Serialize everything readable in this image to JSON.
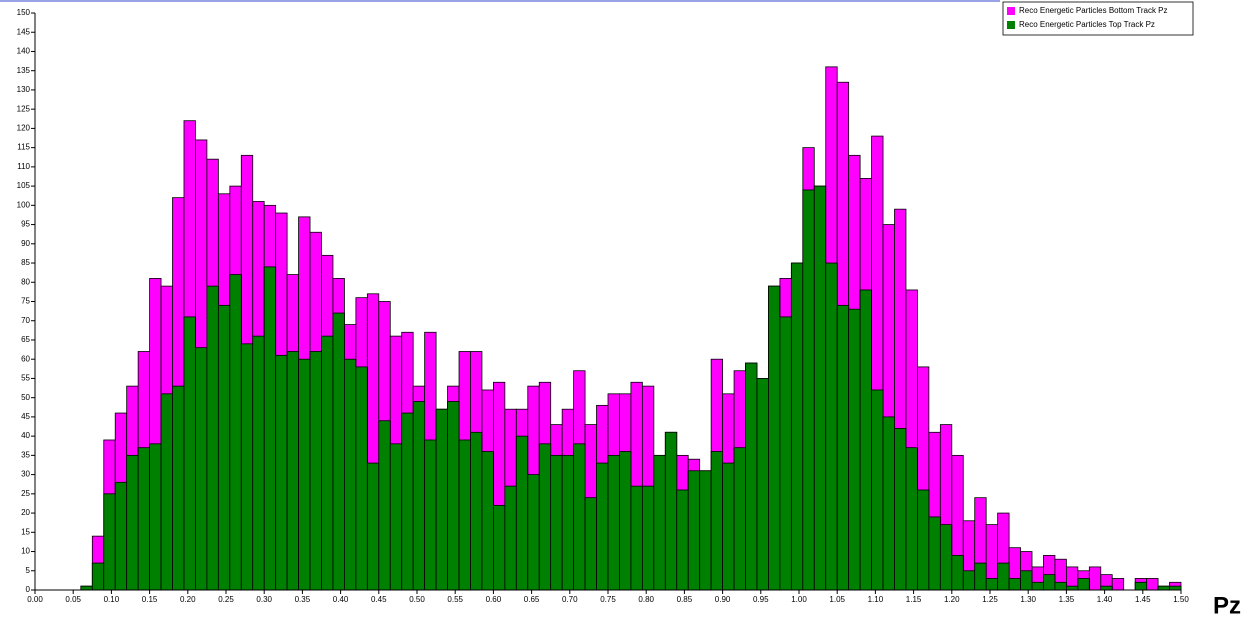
{
  "chart_data": {
    "type": "histogram",
    "overlay": true,
    "xlabel": "Pz",
    "bins": [
      0,
      0.015,
      0.03,
      0.045,
      0.06,
      0.075,
      0.09,
      0.105,
      0.12,
      0.135,
      0.15,
      0.165,
      0.18,
      0.195,
      0.21,
      0.225,
      0.24,
      0.255,
      0.27,
      0.285,
      0.3,
      0.315,
      0.33,
      0.345,
      0.36,
      0.375,
      0.39,
      0.405,
      0.42,
      0.435,
      0.45,
      0.465,
      0.48,
      0.495,
      0.51,
      0.525,
      0.54,
      0.555,
      0.57,
      0.585,
      0.6,
      0.615,
      0.63,
      0.645,
      0.66,
      0.675,
      0.69,
      0.705,
      0.72,
      0.735,
      0.75,
      0.765,
      0.78,
      0.795,
      0.81,
      0.825,
      0.84,
      0.855,
      0.87,
      0.885,
      0.9,
      0.915,
      0.93,
      0.945,
      0.96,
      0.975,
      0.99,
      1.005,
      1.02,
      1.035,
      1.05,
      1.065,
      1.08,
      1.095,
      1.11,
      1.125,
      1.14,
      1.155,
      1.17,
      1.185,
      1.2,
      1.215,
      1.23,
      1.245,
      1.26,
      1.275,
      1.29,
      1.305,
      1.32,
      1.335,
      1.35,
      1.365,
      1.38,
      1.395,
      1.41,
      1.425,
      1.44,
      1.455,
      1.47,
      1.485,
      1.5
    ],
    "series": [
      {
        "name": "Reco Energetic Particles Bottom Track Pz",
        "color": "#ff00ff",
        "values": [
          0,
          0,
          0,
          0,
          1,
          14,
          39,
          46,
          53,
          62,
          81,
          79,
          102,
          122,
          117,
          112,
          103,
          105,
          113,
          101,
          100,
          98,
          82,
          97,
          93,
          87,
          81,
          69,
          76,
          77,
          75,
          66,
          67,
          53,
          67,
          47,
          53,
          62,
          62,
          52,
          54,
          47,
          47,
          53,
          54,
          43,
          47,
          57,
          43,
          48,
          51,
          51,
          54,
          53,
          35,
          41,
          35,
          34,
          31,
          60,
          51,
          57,
          59,
          55,
          79,
          81,
          85,
          115,
          105,
          136,
          132,
          113,
          107,
          118,
          95,
          99,
          78,
          58,
          41,
          43,
          35,
          18,
          24,
          17,
          20,
          11,
          10,
          6,
          9,
          8,
          6,
          5,
          6,
          4,
          3,
          0,
          3,
          3,
          1,
          2
        ]
      },
      {
        "name": "Reco Energetic Particles Top Track Pz",
        "color": "#008000",
        "values": [
          0,
          0,
          0,
          0,
          1,
          7,
          25,
          28,
          35,
          37,
          38,
          51,
          53,
          71,
          63,
          79,
          74,
          82,
          64,
          66,
          84,
          61,
          62,
          60,
          62,
          66,
          72,
          60,
          58,
          33,
          44,
          38,
          46,
          49,
          39,
          47,
          49,
          39,
          41,
          36,
          22,
          27,
          40,
          30,
          38,
          35,
          35,
          38,
          24,
          33,
          35,
          36,
          27,
          27,
          35,
          41,
          26,
          31,
          31,
          36,
          33,
          37,
          59,
          55,
          79,
          71,
          85,
          104,
          105,
          85,
          74,
          73,
          78,
          52,
          45,
          42,
          37,
          26,
          19,
          17,
          9,
          5,
          7,
          3,
          7,
          3,
          5,
          2,
          4,
          2,
          1,
          3,
          0,
          1,
          0,
          0,
          2,
          0,
          1,
          1
        ]
      }
    ],
    "xlim": [
      0,
      1.5
    ],
    "xticks": [
      {
        "value": 0,
        "label": "0.00"
      },
      {
        "value": 0.05,
        "label": "0.05"
      },
      {
        "value": 0.1,
        "label": "0.10"
      },
      {
        "value": 0.15,
        "label": "0.15"
      },
      {
        "value": 0.2,
        "label": "0.20"
      },
      {
        "value": 0.25,
        "label": "0.25"
      },
      {
        "value": 0.3,
        "label": "0.30"
      },
      {
        "value": 0.35,
        "label": "0.35"
      },
      {
        "value": 0.4,
        "label": "0.40"
      },
      {
        "value": 0.45,
        "label": "0.45"
      },
      {
        "value": 0.5,
        "label": "0.50"
      },
      {
        "value": 0.55,
        "label": "0.55"
      },
      {
        "value": 0.6,
        "label": "0.60"
      },
      {
        "value": 0.65,
        "label": "0.65"
      },
      {
        "value": 0.7,
        "label": "0.70"
      },
      {
        "value": 0.75,
        "label": "0.75"
      },
      {
        "value": 0.8,
        "label": "0.80"
      },
      {
        "value": 0.85,
        "label": "0.85"
      },
      {
        "value": 0.9,
        "label": "0.90"
      },
      {
        "value": 0.95,
        "label": "0.95"
      },
      {
        "value": 1,
        "label": "1.00"
      },
      {
        "value": 1.05,
        "label": "1.05"
      },
      {
        "value": 1.1,
        "label": "1.10"
      },
      {
        "value": 1.15,
        "label": "1.15"
      },
      {
        "value": 1.2,
        "label": "1.20"
      },
      {
        "value": 1.25,
        "label": "1.25"
      },
      {
        "value": 1.3,
        "label": "1.30"
      },
      {
        "value": 1.35,
        "label": "1.35"
      },
      {
        "value": 1.4,
        "label": "1.40"
      },
      {
        "value": 1.45,
        "label": "1.45"
      },
      {
        "value": 1.5,
        "label": "1.50"
      }
    ],
    "ylim": [
      0,
      150
    ],
    "yticks": [
      0,
      5,
      10,
      15,
      20,
      25,
      30,
      35,
      40,
      45,
      50,
      55,
      60,
      65,
      70,
      75,
      80,
      85,
      90,
      95,
      100,
      105,
      110,
      115,
      120,
      125,
      130,
      135,
      140,
      145,
      150
    ],
    "legend": "top-right"
  }
}
